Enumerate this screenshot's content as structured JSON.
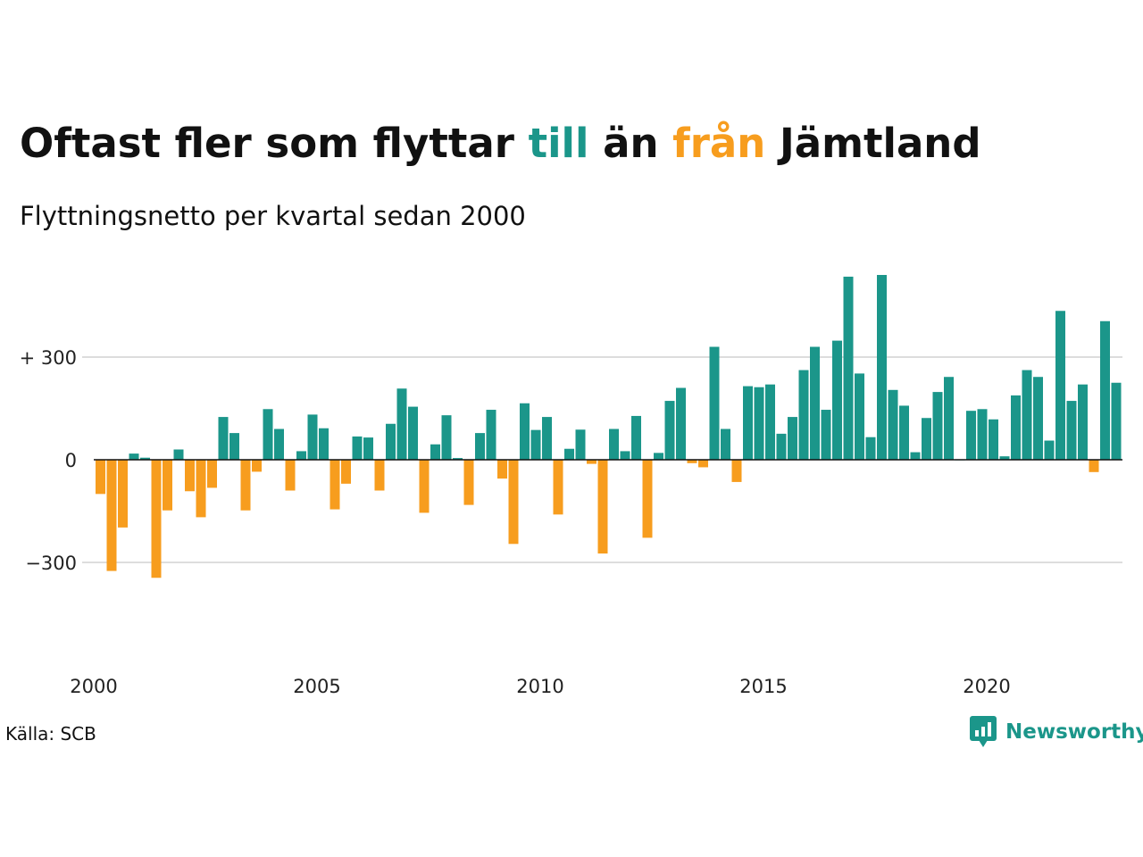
{
  "header": {
    "title_part1": "Oftast fler som flyttar ",
    "title_till": "till",
    "title_part2": " än ",
    "title_fran": "från",
    "title_part3": " Jämtland",
    "subtitle": "Flyttningsnetto per kvartal sedan 2000"
  },
  "footer": {
    "source": "Källa: SCB",
    "brand": "Newsworthy"
  },
  "colors": {
    "positive": "#1b968a",
    "negative": "#f79d1e",
    "grid": "#dddddd",
    "axis": "#111111",
    "brand": "#1b968a"
  },
  "icons": {
    "logo": "chat-bar-chart-icon"
  },
  "chart_data": {
    "type": "bar",
    "title": "Oftast fler som flyttar till än från Jämtland",
    "subtitle": "Flyttningsnetto per kvartal sedan 2000",
    "x_start": 2000,
    "periods_per_year": 4,
    "xticks": [
      "2000",
      "2005",
      "2010",
      "2015",
      "2020"
    ],
    "yticks": [
      {
        "value": 300,
        "label": "+ 300"
      },
      {
        "value": 0,
        "label": "0"
      },
      {
        "value": -300,
        "label": "−300"
      }
    ],
    "ylim": [
      -500,
      580
    ],
    "grid": true,
    "values": [
      -100,
      -325,
      -198,
      18,
      6,
      -345,
      -148,
      30,
      -92,
      -168,
      -82,
      125,
      78,
      -148,
      -35,
      148,
      90,
      -90,
      25,
      132,
      92,
      -145,
      -70,
      68,
      65,
      -90,
      105,
      208,
      155,
      -155,
      45,
      130,
      5,
      -132,
      78,
      146,
      -55,
      -246,
      165,
      87,
      125,
      -160,
      32,
      88,
      -12,
      -274,
      90,
      25,
      128,
      -228,
      20,
      172,
      210,
      -10,
      -22,
      330,
      90,
      -65,
      215,
      212,
      220,
      76,
      125,
      262,
      330,
      146,
      348,
      535,
      252,
      66,
      540,
      204,
      158,
      22,
      122,
      198,
      242,
      0,
      143,
      148,
      118,
      10,
      188,
      262,
      242,
      56,
      435,
      172,
      220,
      -36,
      405,
      225
    ]
  }
}
